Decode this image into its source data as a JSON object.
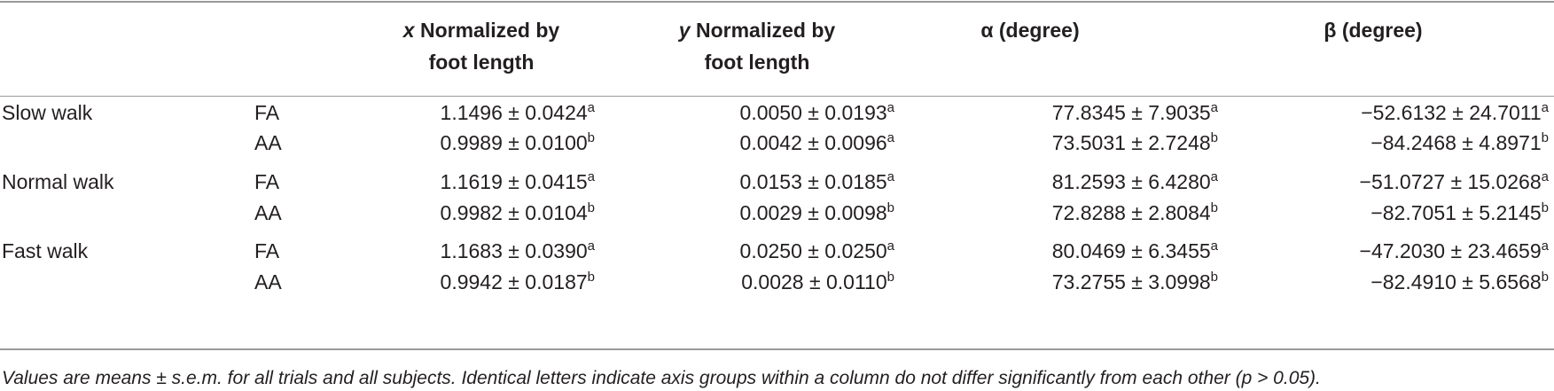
{
  "table": {
    "headers": {
      "col1_var": "x",
      "col1_line1": "Normalized by",
      "col1_line2": "foot length",
      "col2_var": "y",
      "col2_line1": "Normalized by",
      "col2_line2": "foot length",
      "col3": "α (degree)",
      "col4": "β (degree)"
    },
    "rows": [
      {
        "group": "Slow walk",
        "axis": "FA",
        "c1": "1.1496 ± 0.0424",
        "c1s": "a",
        "c2": "0.0050 ± 0.0193",
        "c2s": "a",
        "c3": "77.8345 ± 7.9035",
        "c3s": "a",
        "c4": "−52.6132 ± 24.7011",
        "c4s": "a"
      },
      {
        "group": "",
        "axis": "AA",
        "c1": "0.9989 ± 0.0100",
        "c1s": "b",
        "c2": "0.0042 ± 0.0096",
        "c2s": "a",
        "c3": "73.5031 ± 2.7248",
        "c3s": "b",
        "c4": "−84.2468 ± 4.8971",
        "c4s": "b"
      },
      {
        "group": "Normal walk",
        "axis": "FA",
        "c1": "1.1619 ± 0.0415",
        "c1s": "a",
        "c2": "0.0153 ± 0.0185",
        "c2s": "a",
        "c3": "81.2593 ± 6.4280",
        "c3s": "a",
        "c4": "−51.0727 ± 15.0268",
        "c4s": "a"
      },
      {
        "group": "",
        "axis": "AA",
        "c1": "0.9982 ± 0.0104",
        "c1s": "b",
        "c2": "0.0029 ± 0.0098",
        "c2s": "b",
        "c3": "72.8288 ± 2.8084",
        "c3s": "b",
        "c4": "−82.7051 ± 5.2145",
        "c4s": "b"
      },
      {
        "group": "Fast walk",
        "axis": "FA",
        "c1": "1.1683 ± 0.0390",
        "c1s": "a",
        "c2": "0.0250 ± 0.0250",
        "c2s": "a",
        "c3": "80.0469 ± 6.3455",
        "c3s": "a",
        "c4": "−47.2030 ± 23.4659",
        "c4s": "a"
      },
      {
        "group": "",
        "axis": "AA",
        "c1": "0.9942 ± 0.0187",
        "c1s": "b",
        "c2": "0.0028 ± 0.0110",
        "c2s": "b",
        "c3": "73.2755 ± 3.0998",
        "c3s": "b",
        "c4": "−82.4910 ± 5.6568",
        "c4s": "b"
      }
    ],
    "footnote": "Values are means ± s.e.m. for all trials and all subjects. Identical letters indicate axis groups within a column do not differ significantly from each other (p > 0.05)."
  }
}
